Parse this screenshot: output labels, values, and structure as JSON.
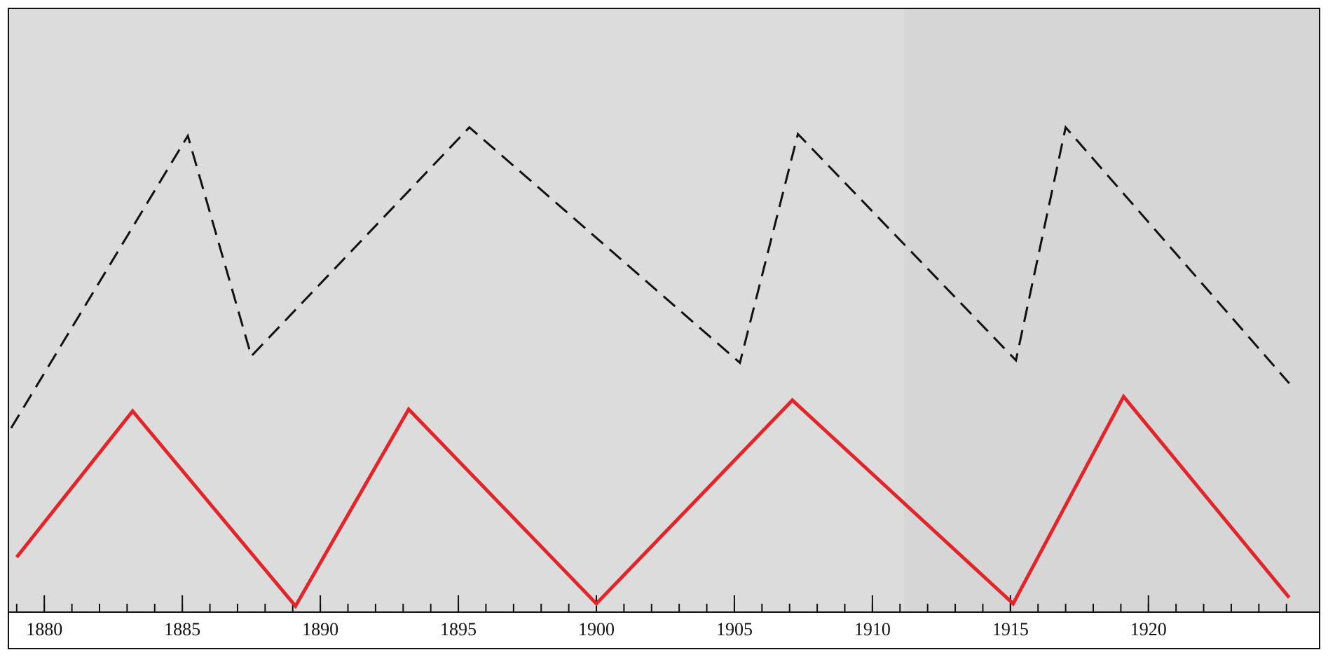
{
  "chart_data": {
    "type": "line",
    "xlim": [
      1878.7,
      1926.2
    ],
    "xticks": [
      1880,
      1885,
      1890,
      1895,
      1900,
      1905,
      1910,
      1915,
      1920
    ],
    "xticks_minor": [
      1879,
      1880,
      1881,
      1882,
      1883,
      1884,
      1885,
      1886,
      1887,
      1888,
      1889,
      1890,
      1891,
      1892,
      1893,
      1894,
      1895,
      1896,
      1897,
      1898,
      1899,
      1900,
      1901,
      1902,
      1903,
      1904,
      1905,
      1906,
      1907,
      1908,
      1909,
      1910,
      1911,
      1912,
      1913,
      1914,
      1915,
      1916,
      1917,
      1918,
      1919,
      1920,
      1921,
      1922,
      1923,
      1924,
      1925
    ],
    "ylim": [
      0,
      100
    ],
    "series": [
      {
        "color": "#111111",
        "dashed": true,
        "x": [
          1878.8,
          1885.2,
          1887.5,
          1895.4,
          1905.2,
          1907.3,
          1915.2,
          1917.0,
          1925.1
        ],
        "values": [
          30.5,
          78.9,
          42.4,
          80.3,
          41.3,
          79.2,
          41.7,
          80.3,
          37.9
        ]
      },
      {
        "color": "#e0262b",
        "dashed": false,
        "x": [
          1879.0,
          1883.2,
          1889.1,
          1893.2,
          1900.0,
          1907.1,
          1915.1,
          1919.1,
          1925.1
        ],
        "values": [
          9.1,
          33.3,
          1.0,
          33.6,
          1.4,
          35.1,
          1.4,
          35.7,
          2.4
        ]
      }
    ]
  }
}
